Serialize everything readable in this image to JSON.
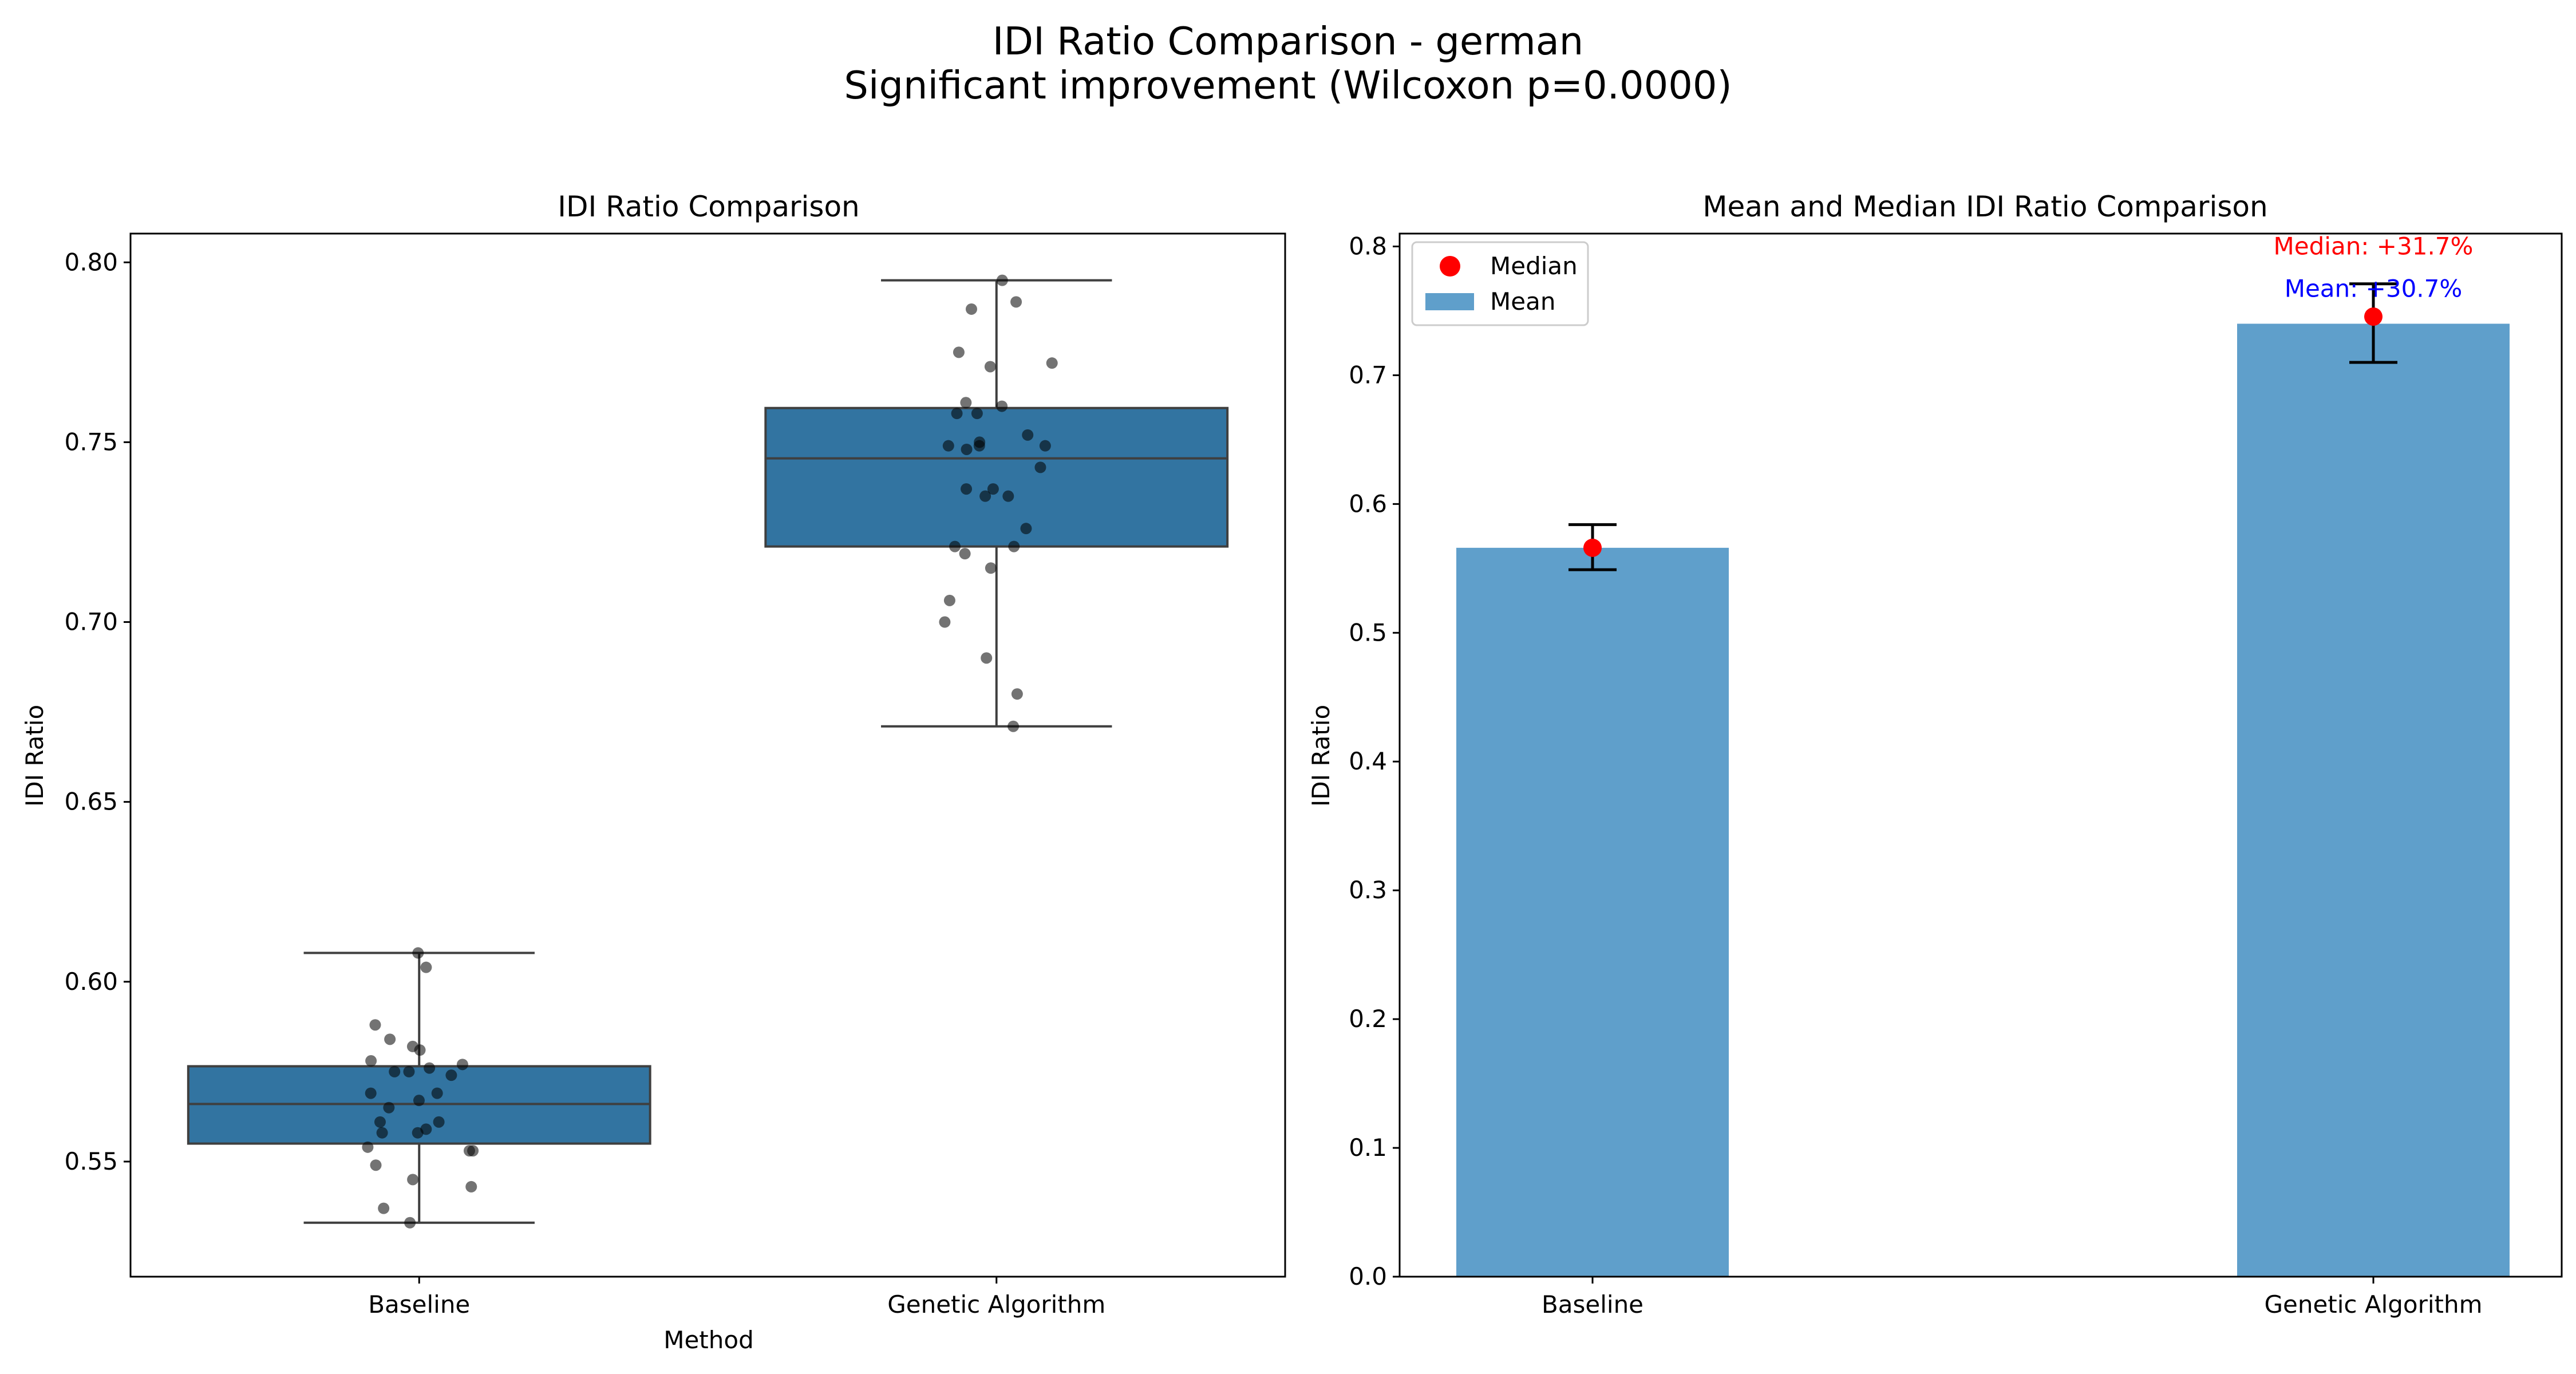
{
  "figure": {
    "suptitle_line1": "IDI Ratio Comparison - german",
    "suptitle_line2": "Significant improvement (Wilcoxon p=0.0000)"
  },
  "chart_data": [
    {
      "type": "box",
      "title": "IDI Ratio Comparison",
      "xlabel": "Method",
      "ylabel": "IDI Ratio",
      "categories": [
        "Baseline",
        "Genetic Algorithm"
      ],
      "ylim": [
        0.518,
        0.808
      ],
      "yticks": [
        0.55,
        0.6,
        0.65,
        0.7,
        0.75,
        0.8
      ],
      "ytick_labels": [
        "0.55",
        "0.60",
        "0.65",
        "0.70",
        "0.75",
        "0.80"
      ],
      "box_color": "#3274a1",
      "boxes": [
        {
          "category": "Baseline",
          "whisker_low": 0.533,
          "q1": 0.555,
          "median": 0.566,
          "q3": 0.5765,
          "whisker_high": 0.608
        },
        {
          "category": "Genetic Algorithm",
          "whisker_low": 0.671,
          "q1": 0.721,
          "median": 0.7455,
          "q3": 0.7595,
          "whisker_high": 0.795
        }
      ],
      "points": [
        {
          "category": "Baseline",
          "values": [
            0.608,
            0.604,
            0.588,
            0.584,
            0.582,
            0.581,
            0.578,
            0.577,
            0.576,
            0.575,
            0.575,
            0.574,
            0.569,
            0.569,
            0.567,
            0.565,
            0.561,
            0.561,
            0.559,
            0.558,
            0.558,
            0.554,
            0.553,
            0.553,
            0.549,
            0.545,
            0.543,
            0.537,
            0.533
          ]
        },
        {
          "category": "Genetic Algorithm",
          "values": [
            0.795,
            0.789,
            0.787,
            0.775,
            0.772,
            0.771,
            0.761,
            0.76,
            0.758,
            0.758,
            0.752,
            0.75,
            0.749,
            0.749,
            0.749,
            0.748,
            0.743,
            0.737,
            0.737,
            0.735,
            0.735,
            0.726,
            0.721,
            0.721,
            0.719,
            0.715,
            0.706,
            0.7,
            0.69,
            0.68,
            0.671
          ]
        }
      ]
    },
    {
      "type": "bar",
      "title": "Mean and Median IDI Ratio Comparison",
      "xlabel": "",
      "ylabel": "IDI Ratio",
      "categories": [
        "Baseline",
        "Genetic Algorithm"
      ],
      "ylim": [
        0,
        0.81
      ],
      "yticks": [
        0.0,
        0.1,
        0.2,
        0.3,
        0.4,
        0.5,
        0.6,
        0.7,
        0.8
      ],
      "ytick_labels": [
        "0.0",
        "0.1",
        "0.2",
        "0.3",
        "0.4",
        "0.5",
        "0.6",
        "0.7",
        "0.8"
      ],
      "bar_color": "#5f9fcb",
      "median_color": "#ff0000",
      "legend_position": "upper-left",
      "series": [
        {
          "name": "Mean",
          "values": [
            0.566,
            0.74
          ]
        },
        {
          "name": "Median",
          "values": [
            0.566,
            0.7455
          ]
        }
      ],
      "error_bars": [
        {
          "low": 0.549,
          "high": 0.584
        },
        {
          "low": 0.71,
          "high": 0.771
        }
      ],
      "annotations": [
        {
          "text": "Median: +31.7%",
          "color": "#ff0000",
          "category": "Genetic Algorithm",
          "y": 0.8
        },
        {
          "text": "Mean: +30.7%",
          "color": "#0000ff",
          "category": "Genetic Algorithm",
          "y": 0.767
        }
      ]
    }
  ]
}
